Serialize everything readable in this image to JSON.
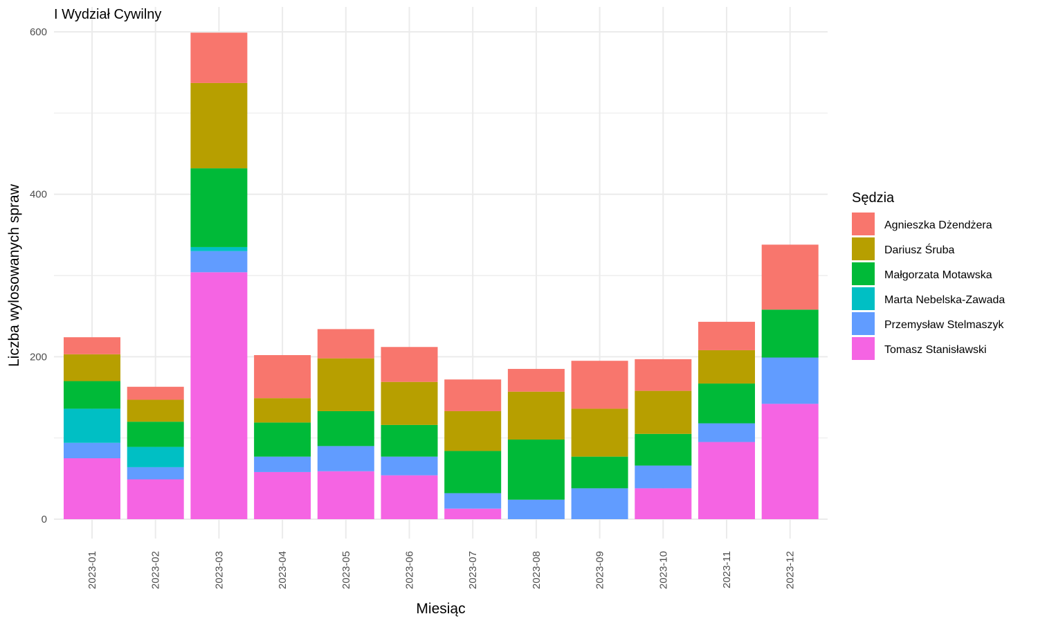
{
  "chart_data": {
    "type": "bar",
    "stacked": true,
    "title": "I Wydział Cywilny",
    "xlabel": "Miesiąc",
    "ylabel": "Liczba wylosowanych spraw",
    "ylim": [
      0,
      600
    ],
    "yticks": [
      0,
      200,
      400,
      600
    ],
    "grid": true,
    "legend_position": "right",
    "legend_title": "Sędzia",
    "categories": [
      "2023-01",
      "2023-02",
      "2023-03",
      "2023-04",
      "2023-05",
      "2023-06",
      "2023-07",
      "2023-08",
      "2023-09",
      "2023-10",
      "2023-11",
      "2023-12"
    ],
    "series": [
      {
        "name": "Tomasz Stanisławski",
        "color": "#F564E3",
        "values": [
          75,
          49,
          304,
          58,
          59,
          54,
          13,
          0,
          0,
          38,
          95,
          142
        ]
      },
      {
        "name": "Przemysław Stelmaszyk",
        "color": "#619CFF",
        "values": [
          19,
          15,
          26,
          19,
          31,
          23,
          19,
          24,
          38,
          28,
          23,
          57
        ]
      },
      {
        "name": "Marta Nebelska-Zawada",
        "color": "#00BFC4",
        "values": [
          42,
          25,
          5,
          0,
          0,
          0,
          0,
          0,
          0,
          0,
          0,
          0
        ]
      },
      {
        "name": "Małgorzata Motawska",
        "color": "#00BA38",
        "values": [
          34,
          31,
          97,
          42,
          43,
          39,
          52,
          74,
          39,
          39,
          49,
          59
        ]
      },
      {
        "name": "Dariusz Śruba",
        "color": "#B79F00",
        "values": [
          33,
          27,
          105,
          30,
          65,
          53,
          49,
          59,
          59,
          53,
          41,
          0
        ]
      },
      {
        "name": "Agnieszka Dżendżera",
        "color": "#F8766D",
        "values": [
          21,
          16,
          62,
          53,
          36,
          43,
          39,
          28,
          59,
          39,
          35,
          80
        ]
      }
    ]
  }
}
